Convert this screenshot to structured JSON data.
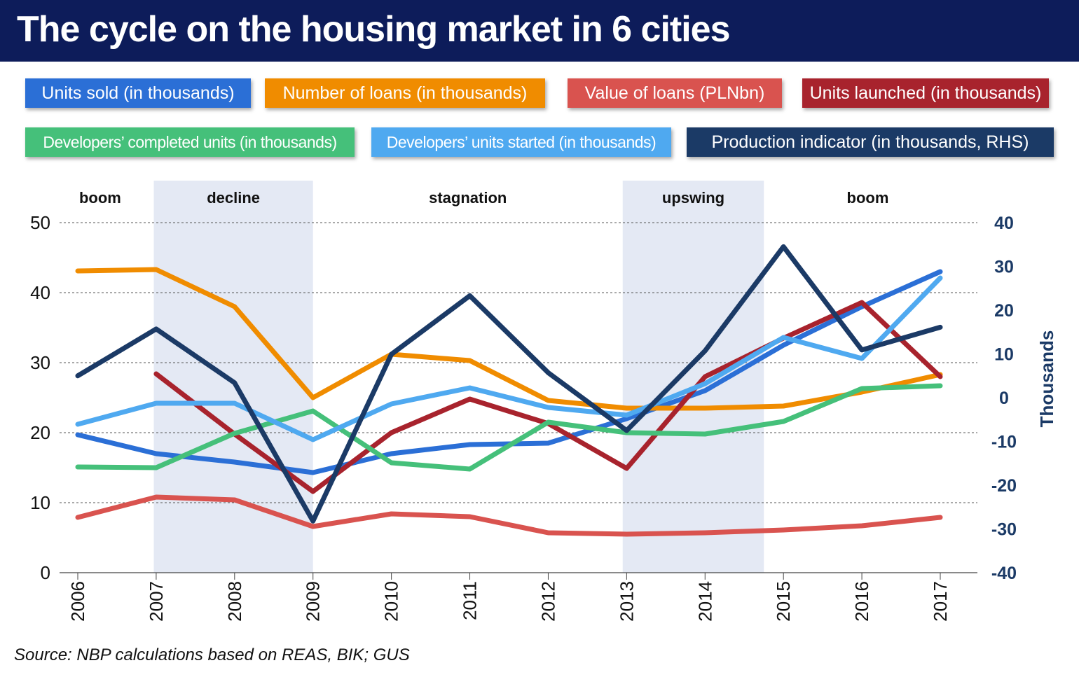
{
  "title": "The cycle on the housing market in 6 cities",
  "source": "Source: NBP calculations based on REAS, BIK; GUS",
  "chart_data": {
    "type": "line",
    "x": [
      "2006",
      "2007",
      "2008",
      "2009",
      "2010",
      "2011",
      "2012",
      "2013",
      "2014",
      "2015",
      "2016",
      "2017"
    ],
    "ylim": [
      0,
      50
    ],
    "y_ticks": [
      "0",
      "10",
      "20",
      "30",
      "40",
      "50"
    ],
    "y2lim": [
      -40,
      40
    ],
    "y2_ticks": [
      "-40",
      "-30",
      "-20",
      "-10",
      "0",
      "10",
      "20",
      "30",
      "40"
    ],
    "y2label": "Thousands",
    "grid": true,
    "phases": [
      {
        "label": "boom",
        "start": 2005.6,
        "end": 2006.97,
        "shaded": false
      },
      {
        "label": "decline",
        "start": 2006.97,
        "end": 2009.0,
        "shaded": true
      },
      {
        "label": "stagnation",
        "start": 2009.0,
        "end": 2012.95,
        "shaded": false
      },
      {
        "label": "upswing",
        "start": 2012.95,
        "end": 2014.75,
        "shaded": true
      },
      {
        "label": "boom",
        "start": 2014.75,
        "end": 2017.4,
        "shaded": false
      }
    ],
    "series": [
      {
        "name": "Units sold (in thousands)",
        "color": "#2b6fd6",
        "axis": "left",
        "values": [
          19.7,
          17.0,
          15.8,
          14.3,
          17.0,
          18.3,
          18.5,
          22.0,
          26.0,
          32.5,
          38.0,
          43.0
        ]
      },
      {
        "name": "Number of loans (in thousands)",
        "color": "#f08c00",
        "axis": "left",
        "values": [
          43.1,
          43.3,
          38.0,
          25.0,
          31.2,
          30.3,
          24.6,
          23.5,
          23.5,
          23.8,
          25.8,
          28.3
        ]
      },
      {
        "name": "Value of loans (PLNbn)",
        "color": "#d9534f",
        "axis": "left",
        "values": [
          7.9,
          10.8,
          10.4,
          6.6,
          8.4,
          8.0,
          5.7,
          5.5,
          5.7,
          6.1,
          6.7,
          7.9
        ]
      },
      {
        "name": "Units launched (in thousands)",
        "color": "#a8232d",
        "axis": "left",
        "values": [
          null,
          28.4,
          19.8,
          11.6,
          20.0,
          24.8,
          21.3,
          14.9,
          28.0,
          33.5,
          38.6,
          28.0
        ]
      },
      {
        "name": "Developers’ completed units (in thousands)",
        "color": "#45c07a",
        "axis": "left",
        "values": [
          15.1,
          15.0,
          19.9,
          23.1,
          15.7,
          14.8,
          21.5,
          20.0,
          19.8,
          21.6,
          26.3,
          26.7
        ]
      },
      {
        "name": "Developers’ units started (in thousands)",
        "color": "#4fa9f0",
        "axis": "left",
        "values": [
          21.2,
          24.2,
          24.2,
          19.0,
          24.1,
          26.4,
          23.6,
          22.5,
          27.0,
          33.6,
          30.6,
          42.1
        ]
      },
      {
        "name": "Production indicator (in thousands, RHS)",
        "color": "#1b3a66",
        "axis": "right",
        "values": [
          5.0,
          15.7,
          3.4,
          -28.2,
          9.9,
          23.3,
          5.7,
          -7.5,
          10.7,
          34.5,
          10.9,
          16.1
        ]
      }
    ]
  },
  "legend": [
    {
      "label": "Units sold (in thousands)",
      "color": "#2b6fd6"
    },
    {
      "label": "Number of loans (in thousands)",
      "color": "#f08c00"
    },
    {
      "label": "Value of loans (PLNbn)",
      "color": "#d9534f"
    },
    {
      "label": "Units launched (in thousands)",
      "color": "#a8232d"
    },
    {
      "label": "Developers’ completed units (in thousands)",
      "color": "#45c07a"
    },
    {
      "label": "Developers’ units started (in thousands)",
      "color": "#4fa9f0"
    },
    {
      "label": "Production indicator (in thousands, RHS)",
      "color": "#1b3a66"
    }
  ]
}
